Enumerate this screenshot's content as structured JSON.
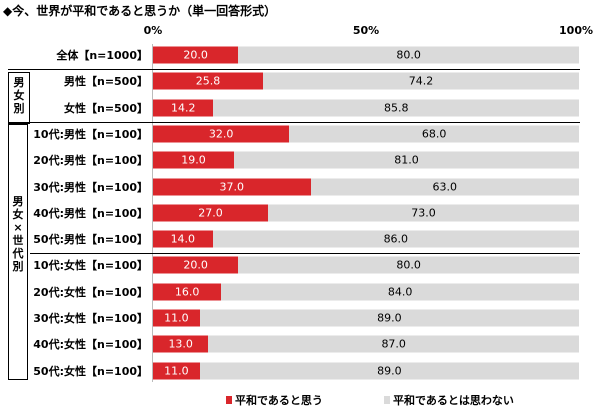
{
  "chart_data": {
    "type": "bar",
    "orientation": "horizontal",
    "stacked": true,
    "title": "◆今、世界が平和であると思うか（単一回答形式）",
    "xlim": [
      0,
      100
    ],
    "x_ticks": [
      "0%",
      "50%",
      "100%"
    ],
    "legend_position": "bottom",
    "groups": [
      {
        "label": "男女別",
        "rows": [
          1,
          2
        ]
      },
      {
        "label": "男女×世代別",
        "rows": [
          3,
          12
        ]
      }
    ],
    "categories": [
      "全体【n=1000】",
      "男性【n=500】",
      "女性【n=500】",
      "10代:男性【n=100】",
      "20代:男性【n=100】",
      "30代:男性【n=100】",
      "40代:男性【n=100】",
      "50代:男性【n=100】",
      "10代:女性【n=100】",
      "20代:女性【n=100】",
      "30代:女性【n=100】",
      "40代:女性【n=100】",
      "50代:女性【n=100】"
    ],
    "series": [
      {
        "name": "平和であると思う",
        "color": "#d9262b",
        "values": [
          20.0,
          25.8,
          14.2,
          32.0,
          19.0,
          37.0,
          27.0,
          14.0,
          20.0,
          16.0,
          11.0,
          13.0,
          11.0
        ],
        "labels": [
          "20.0",
          "25.8",
          "14.2",
          "32.0",
          "19.0",
          "37.0",
          "27.0",
          "14.0",
          "20.0",
          "16.0",
          "11.0",
          "13.0",
          "11.0"
        ]
      },
      {
        "name": "平和であるとは思わない",
        "color": "#dadada",
        "values": [
          80.0,
          74.2,
          85.8,
          68.0,
          81.0,
          63.0,
          73.0,
          86.0,
          80.0,
          84.0,
          89.0,
          87.0,
          89.0
        ],
        "labels": [
          "80.0",
          "74.2",
          "85.8",
          "68.0",
          "81.0",
          "63.0",
          "73.0",
          "86.0",
          "80.0",
          "84.0",
          "89.0",
          "87.0",
          "89.0"
        ]
      }
    ]
  }
}
